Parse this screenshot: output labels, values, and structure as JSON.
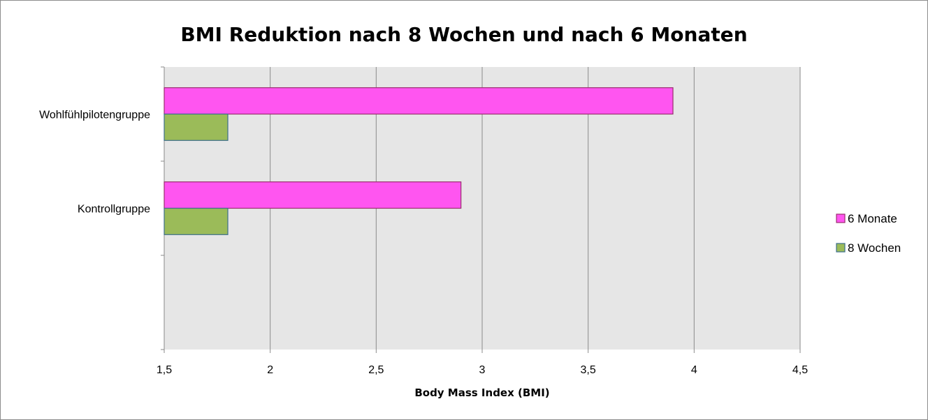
{
  "chart_data": {
    "type": "bar",
    "orientation": "horizontal",
    "title": "BMI Reduktion nach 8 Wochen und nach 6 Monaten",
    "xlabel": "Body Mass Index (BMI)",
    "ylabel": "",
    "xlim": [
      1.5,
      4.5
    ],
    "x_ticks": [
      1.5,
      2,
      2.5,
      3,
      3.5,
      4,
      4.5
    ],
    "x_tick_labels": [
      "1,5",
      "2",
      "2,5",
      "3",
      "3,5",
      "4",
      "4,5"
    ],
    "categories": [
      "Wohlfühlpilotengruppe",
      "Kontrollgruppe"
    ],
    "series": [
      {
        "name": "6 Monate",
        "values": [
          3.9,
          2.9
        ],
        "color": "#ff55f0",
        "stroke": "#9a2f6f"
      },
      {
        "name": "8 Wochen",
        "values": [
          1.8,
          1.8
        ],
        "color": "#9bbb59",
        "stroke": "#3d6f8e"
      }
    ],
    "grid": true,
    "plot_background": "#e6e6e6",
    "legend_position": "right"
  }
}
